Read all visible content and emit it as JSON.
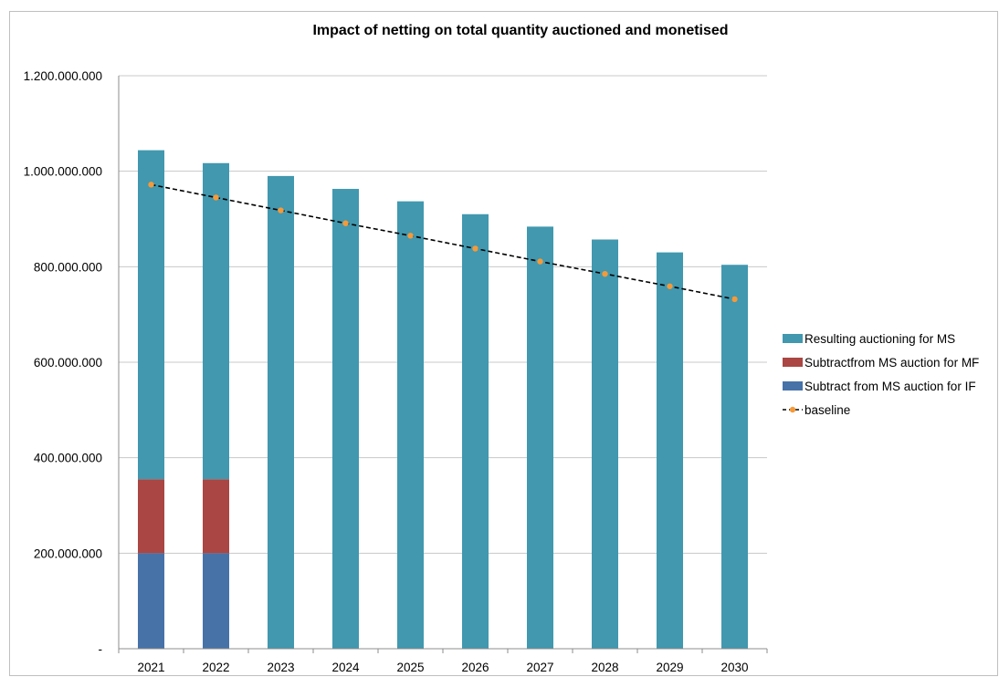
{
  "chart_data": {
    "type": "bar",
    "stacked": true,
    "title": "Impact of netting on total quantity auctioned and monetised",
    "categories": [
      "2021",
      "2022",
      "2023",
      "2024",
      "2025",
      "2026",
      "2027",
      "2028",
      "2029",
      "2030"
    ],
    "series": [
      {
        "name": "Subtract from MS auction for IF",
        "color": "#4672a8",
        "values": [
          200000000,
          200000000,
          0,
          0,
          0,
          0,
          0,
          0,
          0,
          0
        ]
      },
      {
        "name": "Subtractfrom MS auction for MF",
        "color": "#aa4643",
        "values": [
          155000000,
          155000000,
          0,
          0,
          0,
          0,
          0,
          0,
          0,
          0
        ]
      },
      {
        "name": "Resulting auctioning for MS",
        "color": "#4198af",
        "values": [
          689000000,
          662000000,
          990000000,
          963000000,
          937000000,
          910000000,
          884000000,
          857000000,
          830000000,
          804000000
        ]
      }
    ],
    "line": {
      "name": "baseline",
      "type": "line",
      "style": "dashed",
      "line_color": "#000000",
      "marker_color": "#f59a3a",
      "values": [
        972000000,
        945000000,
        918000000,
        891000000,
        865000000,
        838000000,
        811000000,
        785000000,
        759000000,
        732000000
      ]
    },
    "y_ticks": [
      {
        "value": 0,
        "label": "-"
      },
      {
        "value": 200000000,
        "label": "200.000.000"
      },
      {
        "value": 400000000,
        "label": "400.000.000"
      },
      {
        "value": 600000000,
        "label": "600.000.000"
      },
      {
        "value": 800000000,
        "label": "800.000.000"
      },
      {
        "value": 1000000000,
        "label": "1.000.000.000"
      },
      {
        "value": 1200000000,
        "label": "1.200.000.000"
      }
    ],
    "ylim": [
      0,
      1200000000
    ],
    "grid": true,
    "legend_position": "right",
    "legend_order": [
      "Resulting auctioning for MS",
      "Subtractfrom MS auction for MF",
      "Subtract from MS auction for IF",
      "baseline"
    ]
  }
}
